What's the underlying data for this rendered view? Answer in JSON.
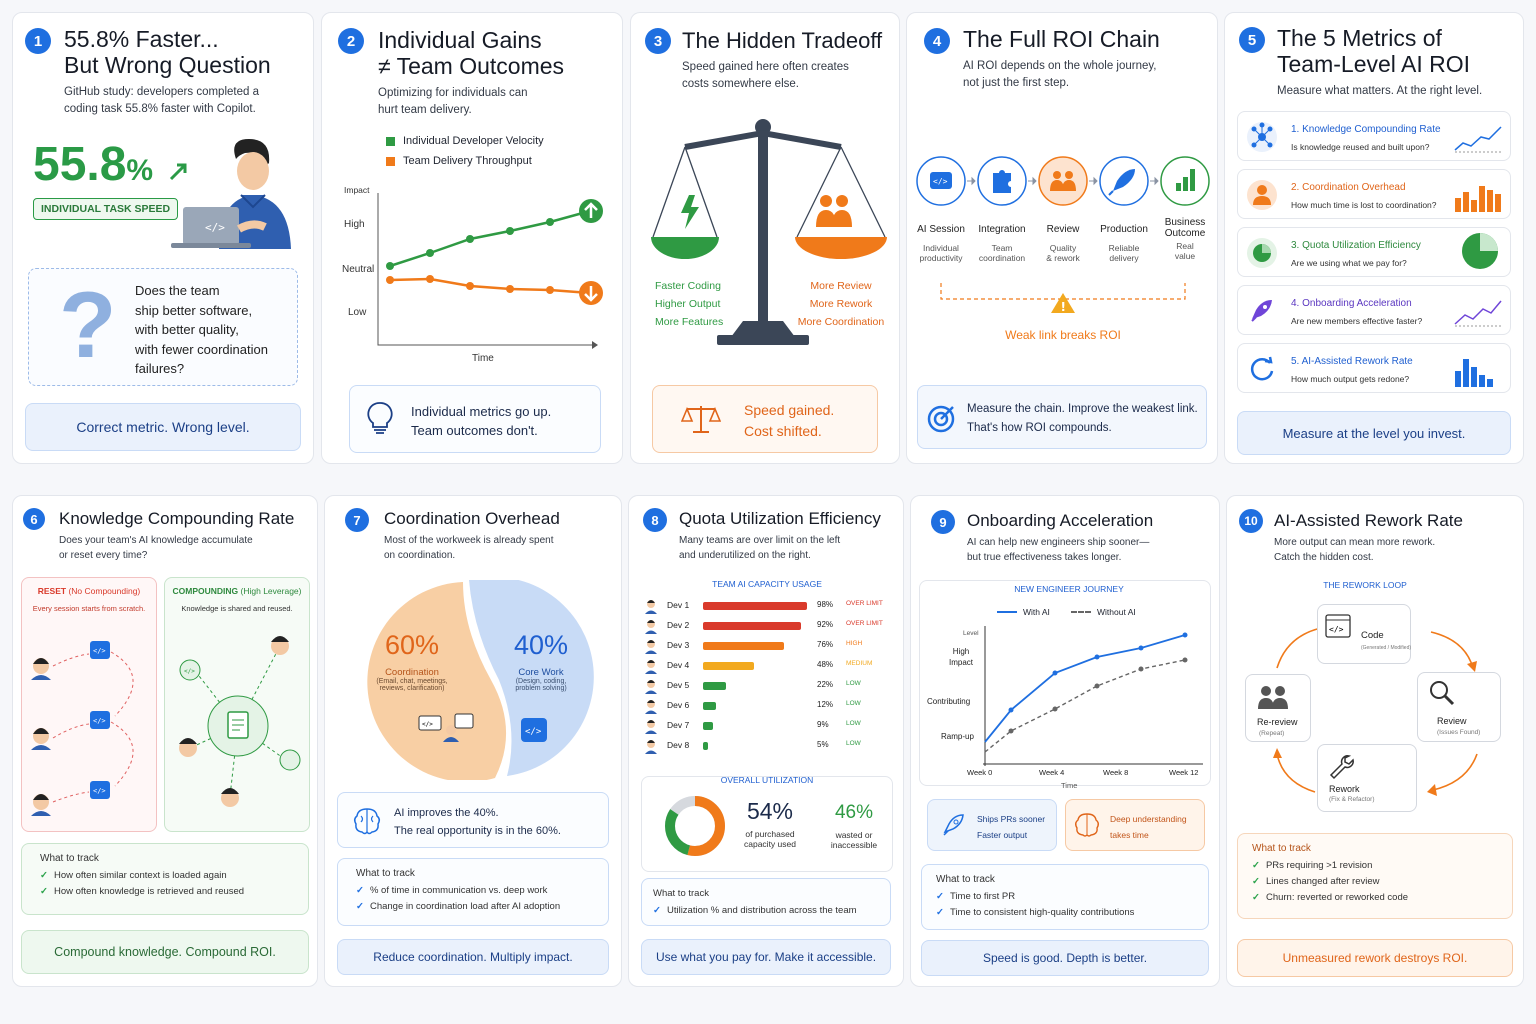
{
  "c1": {
    "num": "1",
    "title1": "55.8% Faster...",
    "title2": "But Wrong Question",
    "desc1": "GitHub study: developers completed a",
    "desc2": "coding task 55.8% faster with Copilot.",
    "big": "55.8",
    "pct": "%",
    "badge": "INDIVIDUAL TASK SPEED",
    "q1": "Does the team",
    "q2": "ship better software,",
    "q3": "with better quality,",
    "q4": "with fewer coordination",
    "q5": "failures?",
    "qmark": "?",
    "footer": "Correct metric. Wrong level."
  },
  "c2": {
    "num": "2",
    "title1": "Individual Gains",
    "title2": "≠ Team Outcomes",
    "desc1": "Optimizing for individuals can",
    "desc2": "hurt team delivery.",
    "legend1": "Individual Developer Velocity",
    "legend2": "Team Delivery Throughput",
    "yaxis": "Impact",
    "high": "High",
    "neutral": "Neutral",
    "low": "Low",
    "xaxis": "Time",
    "foot1": "Individual metrics go up.",
    "foot2": "Team outcomes don't."
  },
  "c3": {
    "num": "3",
    "title": "The Hidden Tradeoff",
    "desc1": "Speed gained here often creates",
    "desc2": "costs somewhere else.",
    "l1": "Faster Coding",
    "l2": "Higher Output",
    "l3": "More Features",
    "r1": "More Review",
    "r2": "More Rework",
    "r3": "More Coordination",
    "foot1": "Speed gained.",
    "foot2": "Cost shifted."
  },
  "c4": {
    "num": "4",
    "title": "The Full ROI Chain",
    "desc1": "AI ROI depends on the whole journey,",
    "desc2": "not just the first step.",
    "steps": [
      {
        "name": "AI Session",
        "s1": "Individual",
        "s2": "productivity"
      },
      {
        "name": "Integration",
        "s1": "Team",
        "s2": "coordination"
      },
      {
        "name": "Review",
        "s1": "Quality",
        "s2": "& rework"
      },
      {
        "name": "Production",
        "s1": "Reliable",
        "s2": "delivery"
      },
      {
        "name": "Business",
        "name2": "Outcome",
        "s1": "Real",
        "s2": "value"
      }
    ],
    "weak": "Weak link breaks ROI",
    "foot1": "Measure the chain. Improve the weakest link.",
    "foot2": "That's how ROI compounds."
  },
  "c5": {
    "num": "5",
    "title1": "The 5 Metrics of",
    "title2": "Team-Level AI ROI",
    "desc": "Measure what matters. At the right level.",
    "items": [
      {
        "t": "1. Knowledge Compounding Rate",
        "d": "Is knowledge reused and built upon?"
      },
      {
        "t": "2. Coordination Overhead",
        "d": "How much time is lost to coordination?"
      },
      {
        "t": "3. Quota Utilization Efficiency",
        "d": "Are we using what we pay for?"
      },
      {
        "t": "4. Onboarding Acceleration",
        "d": "Are new members effective faster?"
      },
      {
        "t": "5. AI-Assisted Rework Rate",
        "d": "How much output gets redone?"
      }
    ],
    "footer": "Measure at the level you invest."
  },
  "c6": {
    "num": "6",
    "title": "Knowledge Compounding Rate",
    "desc1": "Does your team's AI knowledge accumulate",
    "desc2": "or reset every time?",
    "resetT": "RESET",
    "resetT2": "(No Compounding)",
    "resetD": "Every session starts from scratch.",
    "compT": "COMPOUNDING",
    "compT2": "(High Leverage)",
    "compD": "Knowledge is shared and reused.",
    "trackH": "What to track",
    "t1": "How often similar context is loaded again",
    "t2": "How often knowledge is retrieved and reused",
    "footer": "Compound knowledge. Compound ROI."
  },
  "c7": {
    "num": "7",
    "title": "Coordination Overhead",
    "desc1": "Most of the workweek is already spent",
    "desc2": "on coordination.",
    "p1": "60%",
    "p1n": "60",
    "p1l": "Coordination",
    "p1d1": "(Email, chat, meetings,",
    "p1d2": "reviews, clarification)",
    "p2": "40%",
    "p2n": "40",
    "p2l": "Core Work",
    "p2d1": "(Design, coding,",
    "p2d2": "problem solving)",
    "mid1": "AI improves the 40%.",
    "mid2": "The real opportunity is in the 60%.",
    "trackH": "What to track",
    "t1": "% of time in communication vs. deep work",
    "t2": "Change in coordination load after AI adoption",
    "footer": "Reduce coordination. Multiply impact."
  },
  "c8": {
    "num": "8",
    "title": "Quota Utilization Efficiency",
    "desc1": "Many teams are over limit on the left",
    "desc2": "and underutilized on the right.",
    "tableH": "TEAM AI CAPACITY USAGE",
    "devs": [
      {
        "n": "Dev 1",
        "v": 98,
        "p": "98%",
        "s": "OVER LIMIT",
        "c": "#d93a2b"
      },
      {
        "n": "Dev 2",
        "v": 92,
        "p": "92%",
        "s": "OVER LIMIT",
        "c": "#d93a2b"
      },
      {
        "n": "Dev 3",
        "v": 76,
        "p": "76%",
        "s": "HIGH",
        "c": "#f07a1a"
      },
      {
        "n": "Dev 4",
        "v": 48,
        "p": "48%",
        "s": "MEDIUM",
        "c": "#f2a91f"
      },
      {
        "n": "Dev 5",
        "v": 22,
        "p": "22%",
        "s": "LOW",
        "c": "#2f9a43"
      },
      {
        "n": "Dev 6",
        "v": 12,
        "p": "12%",
        "s": "LOW",
        "c": "#2f9a43"
      },
      {
        "n": "Dev 7",
        "v": 9,
        "p": "9%",
        "s": "LOW",
        "c": "#2f9a43"
      },
      {
        "n": "Dev 8",
        "v": 5,
        "p": "5%",
        "s": "LOW",
        "c": "#2f9a43"
      }
    ],
    "overallH": "OVERALL UTILIZATION",
    "used": "54%",
    "usedV": 54,
    "usedL1": "of purchased",
    "usedL2": "capacity used",
    "waste": "46%",
    "wasteL1": "wasted or",
    "wasteL2": "inaccessible",
    "trackH": "What to track",
    "t1": "Utilization % and distribution across the team",
    "footer": "Use what you pay for. Make it accessible."
  },
  "c9": {
    "num": "9",
    "title": "Onboarding Acceleration",
    "desc1": "AI can help new engineers ship sooner—",
    "desc2": "but true effectiveness takes longer.",
    "chartH": "NEW ENGINEER JOURNEY",
    "legA": "With AI",
    "legB": "Without AI",
    "yLevel": "Level",
    "y1": "High",
    "y1b": "Impact",
    "y2": "Contributing",
    "y3": "Ramp-up",
    "x": [
      "Week 0",
      "Week 4",
      "Week 8",
      "Week 12"
    ],
    "xT": "Time",
    "b1a": "Ships PRs sooner",
    "b1b": "Faster output",
    "b2a": "Deep understanding",
    "b2b": "takes time",
    "trackH": "What to track",
    "t1": "Time to first PR",
    "t2": "Time to consistent high-quality contributions",
    "footer": "Speed is good. Depth is better."
  },
  "c10": {
    "num": "10",
    "title": "AI-Assisted Rework Rate",
    "desc1": "More output can mean more rework.",
    "desc2": "Catch the hidden cost.",
    "loopH": "THE REWORK LOOP",
    "n1": "Code",
    "n1s": "(Generated / Modified)",
    "n2": "Review",
    "n2s": "(Issues Found)",
    "n3": "Rework",
    "n3s": "(Fix & Refactor)",
    "n4": "Re-review",
    "n4s": "(Repeat)",
    "trackH": "What to track",
    "t1": "PRs requiring >1 revision",
    "t2": "Lines changed after review",
    "t3": "Churn: reverted or reworked code",
    "footer": "Unmeasured rework destroys ROI."
  }
}
